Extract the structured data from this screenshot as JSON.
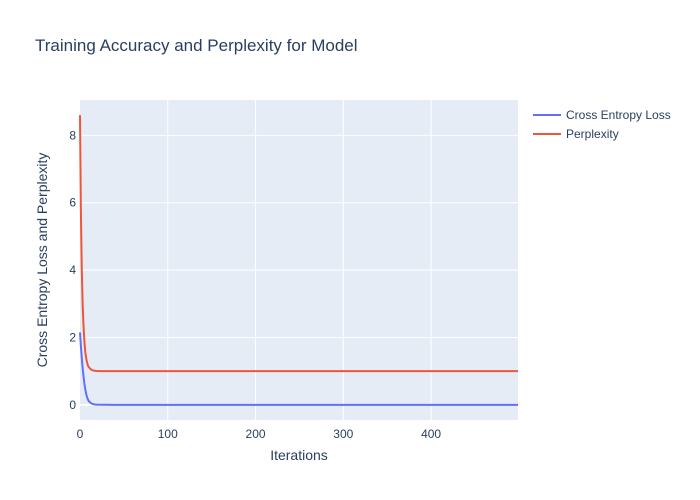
{
  "chart_data": {
    "type": "line",
    "title": "Training Accuracy and Perplexity for Model",
    "xlabel": "Iterations",
    "ylabel": "Cross Entropy Loss and Perplexity",
    "xlim": [
      0,
      499
    ],
    "ylim": [
      -0.45,
      9.05
    ],
    "x_ticks": [
      0,
      100,
      200,
      300,
      400
    ],
    "y_ticks": [
      0,
      2,
      4,
      6,
      8
    ],
    "grid": true,
    "legend_position": "top-right, outside plot",
    "plot_background": "#e5ecf6",
    "series": [
      {
        "name": "Cross Entropy Loss",
        "color": "#636efa",
        "x": [
          0,
          1,
          2,
          3,
          4,
          5,
          6,
          7,
          8,
          9,
          10,
          12,
          14,
          16,
          18,
          20,
          25,
          30,
          40,
          60,
          100,
          200,
          300,
          400,
          499
        ],
        "y": [
          2.15,
          1.75,
          1.4,
          1.1,
          0.85,
          0.63,
          0.46,
          0.33,
          0.23,
          0.16,
          0.11,
          0.06,
          0.03,
          0.015,
          0.008,
          0.005,
          0.002,
          0.001,
          0.0,
          0.0,
          0.0,
          0.0,
          0.0,
          0.0,
          0.0
        ]
      },
      {
        "name": "Perplexity",
        "color": "#ef553b",
        "x": [
          0,
          1,
          2,
          3,
          4,
          5,
          6,
          7,
          8,
          9,
          10,
          12,
          14,
          16,
          18,
          20,
          25,
          30,
          40,
          60,
          100,
          200,
          300,
          400,
          499
        ],
        "y": [
          8.6,
          5.75,
          4.05,
          3.0,
          2.35,
          1.88,
          1.58,
          1.39,
          1.26,
          1.17,
          1.12,
          1.06,
          1.03,
          1.015,
          1.008,
          1.005,
          1.002,
          1.001,
          1.0,
          1.0,
          1.0,
          1.0,
          1.0,
          1.0,
          1.0
        ]
      }
    ]
  }
}
